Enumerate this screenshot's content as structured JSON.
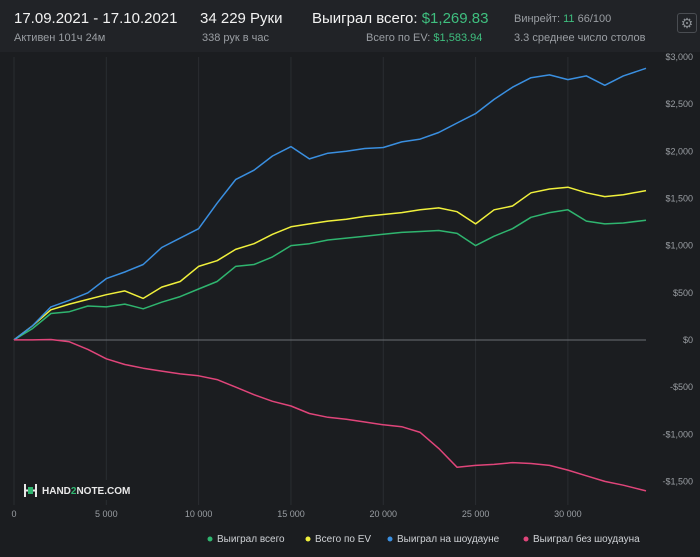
{
  "header": {
    "date_range": "17.09.2021 - 17.10.2021",
    "active_label": "Активен 101ч 24м",
    "hands": "34 229 Руки",
    "hands_per_hour": "338 рук в час",
    "won_total_label": "Выиграл всего:",
    "won_total_value": "$1,269.83",
    "ev_total_label": "Всего по EV:",
    "ev_total_value": "$1,583.94",
    "winrate_label": "Винрейт:",
    "winrate_value": "11",
    "winrate_rest": "66/100",
    "tables_avg": "3.3 среднее число столов"
  },
  "logo": {
    "text_pre": "HAND",
    "text_num": "2",
    "text_post": "NOTE.COM"
  },
  "settings_icon": "gear-icon",
  "chart_data": {
    "type": "line",
    "xlim": [
      0,
      34229
    ],
    "ylim": [
      -1750,
      3000
    ],
    "xticks": [
      0,
      5000,
      10000,
      15000,
      20000,
      25000,
      30000
    ],
    "xtick_labels": [
      "0",
      "5 000",
      "10 000",
      "15 000",
      "20 000",
      "25 000",
      "30 000"
    ],
    "yticks": [
      3000,
      2500,
      2000,
      1500,
      1000,
      500,
      0,
      -500,
      -1000,
      -1500
    ],
    "ytick_labels": [
      "$3,000",
      "$2,500",
      "$2,000",
      "$1,500",
      "$1,000",
      "$500",
      "$0",
      "-$500",
      "-$1,000",
      "-$1,500"
    ],
    "grid": "vertical",
    "legend_position": "bottom-right",
    "series": [
      {
        "name": "Выиграл всего",
        "color": "#2fb56f",
        "x": [
          0,
          1000,
          2000,
          3000,
          4000,
          5000,
          6000,
          7000,
          8000,
          9000,
          10000,
          11000,
          12000,
          13000,
          14000,
          15000,
          16000,
          17000,
          18000,
          19000,
          20000,
          21000,
          22000,
          23000,
          24000,
          25000,
          26000,
          27000,
          28000,
          29000,
          30000,
          31000,
          32000,
          33000,
          34229
        ],
        "y": [
          0,
          120,
          280,
          300,
          360,
          350,
          380,
          330,
          400,
          460,
          540,
          620,
          780,
          800,
          880,
          1000,
          1020,
          1060,
          1080,
          1100,
          1120,
          1140,
          1150,
          1160,
          1130,
          1000,
          1100,
          1180,
          1300,
          1350,
          1380,
          1260,
          1230,
          1240,
          1270
        ]
      },
      {
        "name": "Всего по EV",
        "color": "#f0f03c",
        "x": [
          0,
          1000,
          2000,
          3000,
          4000,
          5000,
          6000,
          7000,
          8000,
          9000,
          10000,
          11000,
          12000,
          13000,
          14000,
          15000,
          16000,
          17000,
          18000,
          19000,
          20000,
          21000,
          22000,
          23000,
          24000,
          25000,
          26000,
          27000,
          28000,
          29000,
          30000,
          31000,
          32000,
          33000,
          34229
        ],
        "y": [
          0,
          150,
          320,
          380,
          430,
          480,
          520,
          440,
          560,
          620,
          780,
          840,
          960,
          1020,
          1120,
          1200,
          1230,
          1260,
          1280,
          1310,
          1330,
          1350,
          1380,
          1400,
          1360,
          1230,
          1380,
          1420,
          1560,
          1600,
          1620,
          1560,
          1520,
          1540,
          1584
        ]
      },
      {
        "name": "Выиграл на шоудауне",
        "color": "#3a8fe0",
        "x": [
          0,
          1000,
          2000,
          3000,
          4000,
          5000,
          6000,
          7000,
          8000,
          9000,
          10000,
          11000,
          12000,
          13000,
          14000,
          15000,
          16000,
          17000,
          18000,
          19000,
          20000,
          21000,
          22000,
          23000,
          24000,
          25000,
          26000,
          27000,
          28000,
          29000,
          30000,
          31000,
          32000,
          33000,
          34229
        ],
        "y": [
          0,
          150,
          350,
          420,
          500,
          650,
          720,
          800,
          980,
          1080,
          1180,
          1450,
          1700,
          1800,
          1950,
          2050,
          1920,
          1980,
          2000,
          2030,
          2040,
          2100,
          2130,
          2200,
          2300,
          2400,
          2550,
          2680,
          2780,
          2810,
          2760,
          2800,
          2700,
          2800,
          2880
        ]
      },
      {
        "name": "Выиграл без шоудауна",
        "color": "#e0457a",
        "x": [
          0,
          1000,
          2000,
          3000,
          4000,
          5000,
          6000,
          7000,
          8000,
          9000,
          10000,
          11000,
          12000,
          13000,
          14000,
          15000,
          16000,
          17000,
          18000,
          19000,
          20000,
          21000,
          22000,
          23000,
          24000,
          25000,
          26000,
          27000,
          28000,
          29000,
          30000,
          31000,
          32000,
          33000,
          34229
        ],
        "y": [
          0,
          0,
          5,
          -20,
          -100,
          -200,
          -260,
          -300,
          -330,
          -360,
          -380,
          -420,
          -500,
          -580,
          -650,
          -700,
          -780,
          -820,
          -840,
          -870,
          -900,
          -920,
          -980,
          -1150,
          -1350,
          -1330,
          -1320,
          -1300,
          -1310,
          -1330,
          -1380,
          -1440,
          -1500,
          -1540,
          -1600
        ]
      }
    ]
  }
}
